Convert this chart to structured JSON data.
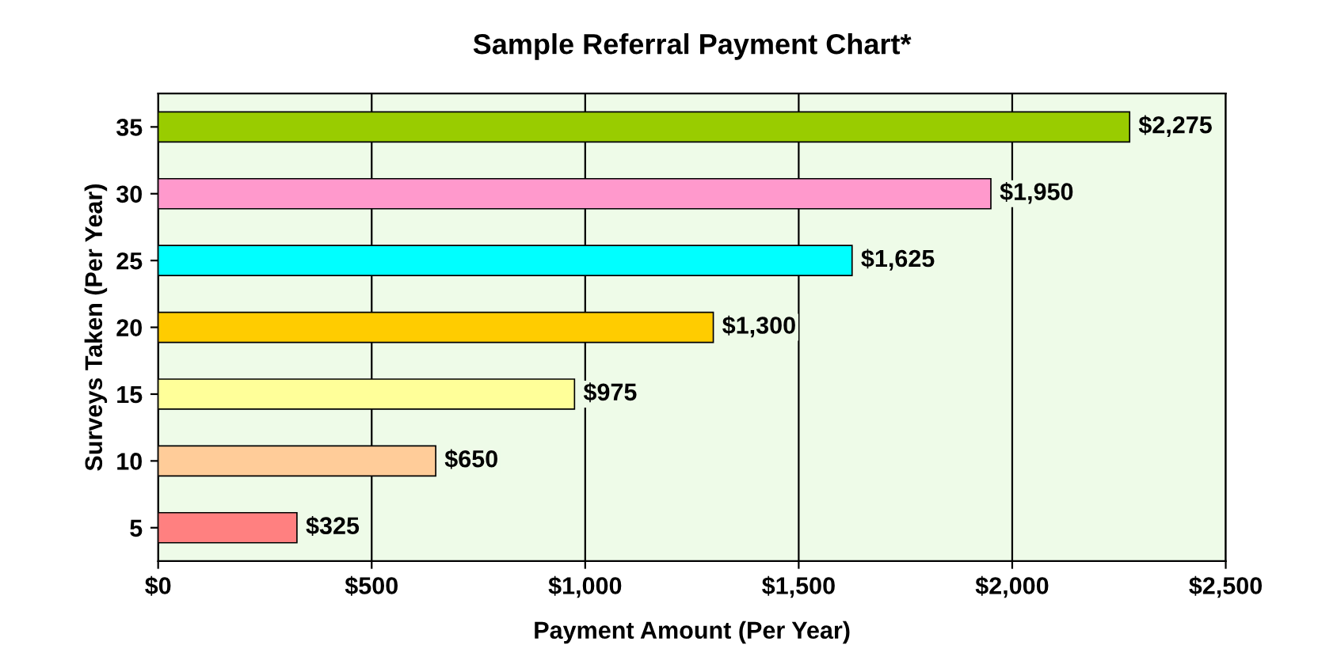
{
  "chart_data": {
    "type": "bar",
    "orientation": "horizontal",
    "title": "Sample Referral Payment Chart*",
    "xlabel": "Payment Amount (Per Year)",
    "ylabel": "Surveys Taken (Per Year)",
    "categories": [
      "35",
      "30",
      "25",
      "20",
      "15",
      "10",
      "5"
    ],
    "values": [
      2275,
      1950,
      1625,
      1300,
      975,
      650,
      325
    ],
    "colors": [
      "#99cc00",
      "#ff99cc",
      "#00ffff",
      "#ffcc00",
      "#ffff99",
      "#ffcc99",
      "#ff8080"
    ],
    "value_labels": [
      "$2,275",
      "$1,950",
      "$1,625",
      "$1,300",
      "$975",
      "$650",
      "$325"
    ],
    "xlim": [
      0,
      2500
    ],
    "xticks": [
      {
        "value": 0,
        "label": "$0"
      },
      {
        "value": 500,
        "label": "$500"
      },
      {
        "value": 1000,
        "label": "$1,000"
      },
      {
        "value": 1500,
        "label": "$1,500"
      },
      {
        "value": 2000,
        "label": "$2,000"
      },
      {
        "value": 2500,
        "label": "$2,500"
      }
    ],
    "grid": "x",
    "legend": false
  }
}
